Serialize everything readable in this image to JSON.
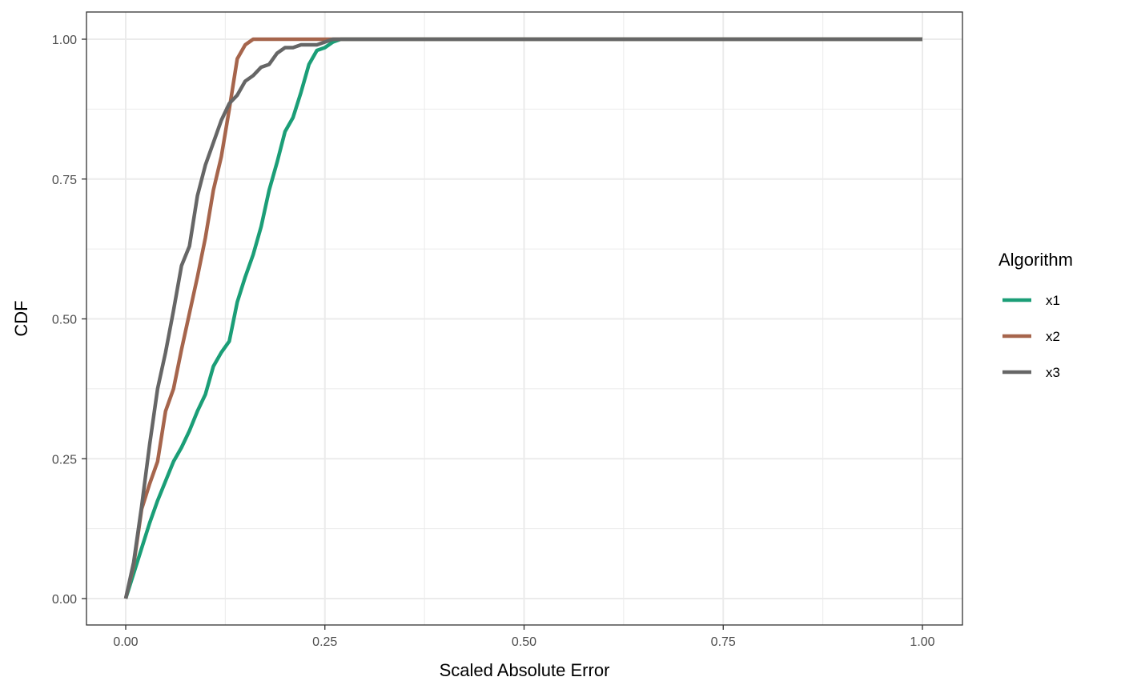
{
  "chart_data": {
    "type": "line",
    "xlabel": "Scaled Absolute Error",
    "ylabel": "CDF",
    "xlim": [
      0,
      1
    ],
    "ylim": [
      0,
      1
    ],
    "x_ticks": [
      0,
      0.25,
      0.5,
      0.75,
      1
    ],
    "x_tick_labels": [
      "0.00",
      "0.25",
      "0.50",
      "0.75",
      "1.00"
    ],
    "y_ticks": [
      0,
      0.25,
      0.5,
      0.75,
      1
    ],
    "y_tick_labels": [
      "0.00",
      "0.25",
      "0.50",
      "0.75",
      "1.00"
    ],
    "grid": true,
    "legend": {
      "title": "Algorithm",
      "placement": "right"
    },
    "series": [
      {
        "name": "x1",
        "color": "#1b9e77",
        "x": [
          0,
          0.01,
          0.02,
          0.03,
          0.04,
          0.05,
          0.06,
          0.07,
          0.08,
          0.09,
          0.1,
          0.11,
          0.12,
          0.13,
          0.14,
          0.15,
          0.16,
          0.17,
          0.18,
          0.19,
          0.2,
          0.21,
          0.22,
          0.23,
          0.24,
          0.25,
          0.26,
          0.27,
          0.28,
          1.0
        ],
        "y": [
          0,
          0.045,
          0.09,
          0.135,
          0.175,
          0.21,
          0.245,
          0.27,
          0.3,
          0.335,
          0.365,
          0.415,
          0.44,
          0.46,
          0.53,
          0.575,
          0.615,
          0.665,
          0.73,
          0.78,
          0.835,
          0.86,
          0.905,
          0.955,
          0.98,
          0.985,
          0.995,
          1.0,
          1.0,
          1.0
        ]
      },
      {
        "name": "x2",
        "color": "#a6654c",
        "x": [
          0,
          0.01,
          0.02,
          0.03,
          0.04,
          0.05,
          0.06,
          0.07,
          0.08,
          0.09,
          0.1,
          0.11,
          0.12,
          0.13,
          0.14,
          0.15,
          0.16,
          0.17,
          0.2,
          0.25,
          0.28,
          1.0
        ],
        "y": [
          0,
          0.06,
          0.16,
          0.205,
          0.245,
          0.335,
          0.375,
          0.445,
          0.51,
          0.575,
          0.645,
          0.73,
          0.79,
          0.875,
          0.965,
          0.99,
          1.0,
          1.0,
          1.0,
          1.0,
          1.0,
          1.0
        ]
      },
      {
        "name": "x3",
        "color": "#666666",
        "x": [
          0,
          0.01,
          0.02,
          0.03,
          0.04,
          0.05,
          0.06,
          0.07,
          0.08,
          0.09,
          0.1,
          0.11,
          0.12,
          0.13,
          0.14,
          0.15,
          0.16,
          0.17,
          0.18,
          0.19,
          0.2,
          0.21,
          0.22,
          0.23,
          0.24,
          0.25,
          0.26,
          0.27,
          0.28,
          1.0
        ],
        "y": [
          0,
          0.065,
          0.165,
          0.275,
          0.375,
          0.44,
          0.515,
          0.595,
          0.63,
          0.72,
          0.775,
          0.815,
          0.855,
          0.885,
          0.9,
          0.925,
          0.935,
          0.95,
          0.955,
          0.975,
          0.985,
          0.985,
          0.99,
          0.99,
          0.99,
          0.995,
          1.0,
          1.0,
          1.0,
          1.0
        ]
      }
    ]
  }
}
